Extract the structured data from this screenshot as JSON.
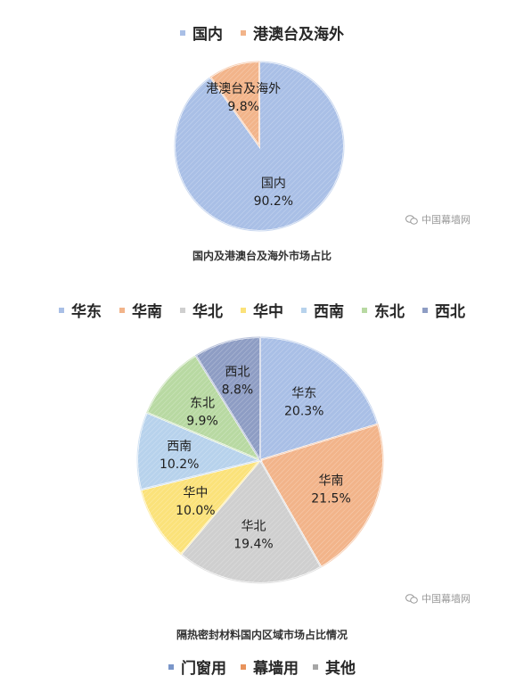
{
  "chart_data": [
    {
      "type": "pie",
      "title": "国内及港澳台及海外市场占比",
      "legend_position": "top",
      "series": [
        {
          "name": "国内",
          "value": 90.2,
          "label": "90.2%",
          "color": "#a9bfe6"
        },
        {
          "name": "港澳台及海外",
          "value": 9.8,
          "label": "9.8%",
          "color": "#f2b48a"
        }
      ]
    },
    {
      "type": "pie",
      "title": "隔热密封材料国内区域市场占比情况",
      "legend_position": "top",
      "series": [
        {
          "name": "华东",
          "value": 20.3,
          "label": "20.3%",
          "color": "#a9bfe6"
        },
        {
          "name": "华南",
          "value": 21.5,
          "label": "21.5%",
          "color": "#f2b48a"
        },
        {
          "name": "华北",
          "value": 19.4,
          "label": "19.4%",
          "color": "#cfcfcf"
        },
        {
          "name": "华中",
          "value": 10.0,
          "label": "10.0%",
          "color": "#fbe27a"
        },
        {
          "name": "西南",
          "value": 10.2,
          "label": "10.2%",
          "color": "#b7d2ec"
        },
        {
          "name": "东北",
          "value": 9.9,
          "label": "9.9%",
          "color": "#b8d9a2"
        },
        {
          "name": "西北",
          "value": 8.8,
          "label": "8.8%",
          "color": "#8e9dc4"
        }
      ]
    }
  ],
  "bottom_legend": [
    {
      "name": "门窗用",
      "color": "#7a96c9"
    },
    {
      "name": "幕墙用",
      "color": "#e8935c"
    },
    {
      "name": "其他",
      "color": "#a6a6a6"
    }
  ],
  "watermark_logo": "中国幕墙网"
}
